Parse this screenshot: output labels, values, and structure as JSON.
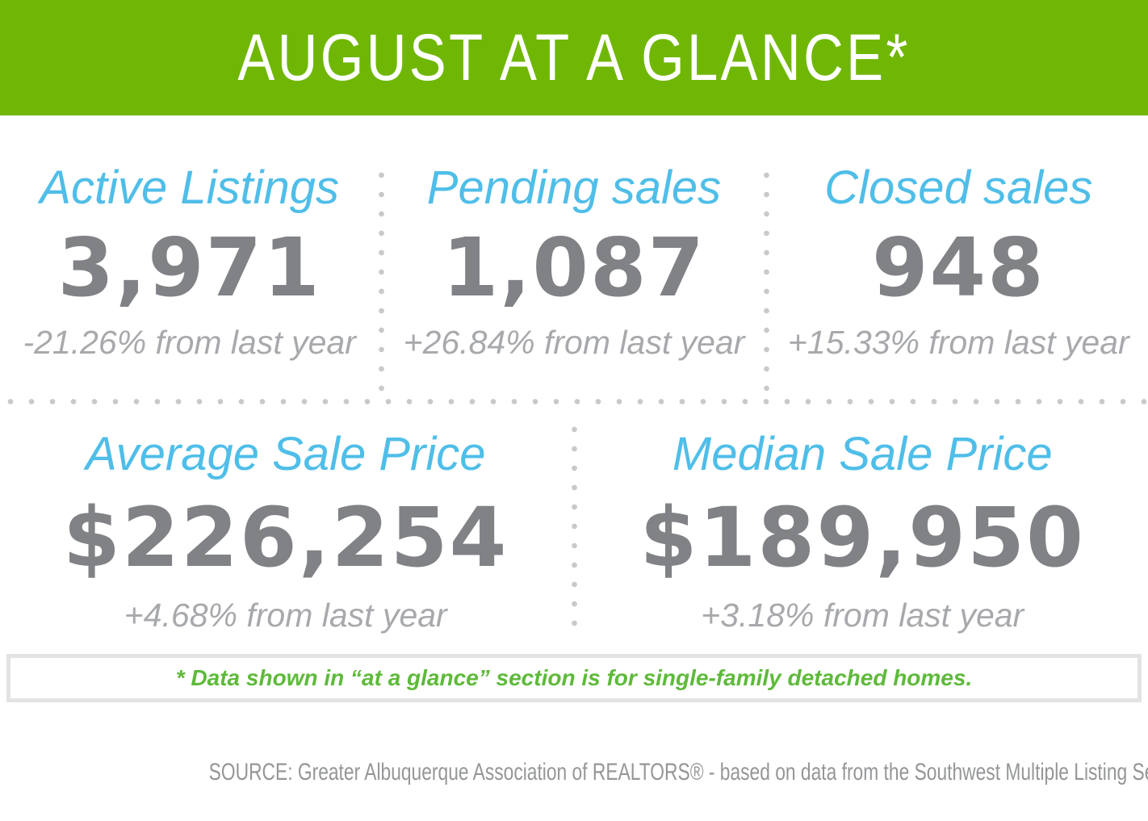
{
  "header": {
    "title": "AUGUST AT A GLANCE*"
  },
  "stats_top": [
    {
      "label": "Active Listings",
      "value": "3,971",
      "change": "-21.26% from last year"
    },
    {
      "label": "Pending sales",
      "value": "1,087",
      "change": "+26.84% from last year"
    },
    {
      "label": "Closed sales",
      "value": "948",
      "change": "+15.33% from last year"
    }
  ],
  "stats_bottom": [
    {
      "label": "Average Sale Price",
      "value": "$226,254",
      "change": "+4.68% from last year"
    },
    {
      "label": "Median Sale Price",
      "value": "$189,950",
      "change": "+3.18% from last year"
    }
  ],
  "note": "* Data shown in “at a glance” section is for single-family detached homes.",
  "source": "SOURCE: Greater Albuquerque Association of REALTORS® - based on data from the Southwest Multiple Listing Service. Data is deemed reliable not guaranteed.",
  "colors": {
    "banner_green": "#70B705",
    "note_green": "#5EBA3A",
    "heading_blue": "#4FBEE8",
    "value_gray": "#808285",
    "change_gray": "#A7A9AC",
    "dot_gray": "#C9C9C9",
    "note_border_gray": "#E3E3E3",
    "source_gray": "#949698"
  },
  "chart_data": {
    "type": "table",
    "title": "AUGUST AT A GLANCE*",
    "note": "Data shown in “at a glance” section is for single-family detached homes.",
    "metrics": [
      {
        "label": "Active Listings",
        "value": 3971,
        "change_pct_from_last_year": -21.26
      },
      {
        "label": "Pending sales",
        "value": 1087,
        "change_pct_from_last_year": 26.84
      },
      {
        "label": "Closed sales",
        "value": 948,
        "change_pct_from_last_year": 15.33
      },
      {
        "label": "Average Sale Price",
        "value": 226254,
        "change_pct_from_last_year": 4.68
      },
      {
        "label": "Median Sale Price",
        "value": 189950,
        "change_pct_from_last_year": 3.18
      }
    ]
  }
}
